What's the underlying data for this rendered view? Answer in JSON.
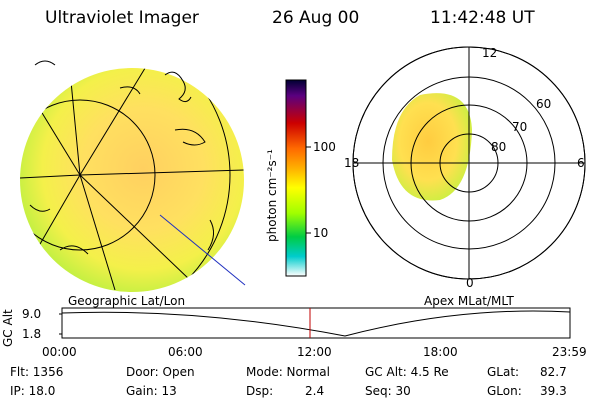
{
  "header": {
    "title": "Ultraviolet Imager",
    "date": "26 Aug 00",
    "time": "11:42:48 UT"
  },
  "colorbar": {
    "unit_label": "photon cm⁻²s⁻¹",
    "ticks": [
      "100",
      "10"
    ],
    "scale": "log",
    "colors": [
      "#000033",
      "#5a0080",
      "#cc0000",
      "#ff6a00",
      "#ffb000",
      "#ffff00",
      "#a0ff00",
      "#00cc44",
      "#00cccc",
      "#ffffff"
    ]
  },
  "polar_plot": {
    "mlt_labels": [
      "12",
      "18",
      "6",
      "0"
    ],
    "mlat_labels": [
      "60",
      "70",
      "80"
    ]
  },
  "panel_labels": {
    "left": "Geographic Lat/Lon",
    "right": "Apex MLat/MLT"
  },
  "altitude_plot": {
    "ylabel": "GC Alt",
    "yticks": [
      "9.0",
      "1.8"
    ],
    "xticks": [
      "00:00",
      "06:00",
      "12:00",
      "18:00",
      "23:59"
    ],
    "marker_time": "11:42:48"
  },
  "info": {
    "flt": "Flt: 1356",
    "ip": "IP: 18.0",
    "door": "Door: Open",
    "gain": "Gain: 13",
    "mode": "Mode: Normal",
    "dsp_label": "Dsp:",
    "dsp_value": "2.4",
    "gc_alt": "GC Alt: 4.5 Re",
    "seq": "Seq: 30",
    "glat_label": "GLat:",
    "glat_value": "82.7",
    "glon_label": "GLon:",
    "glon_value": "39.3"
  }
}
